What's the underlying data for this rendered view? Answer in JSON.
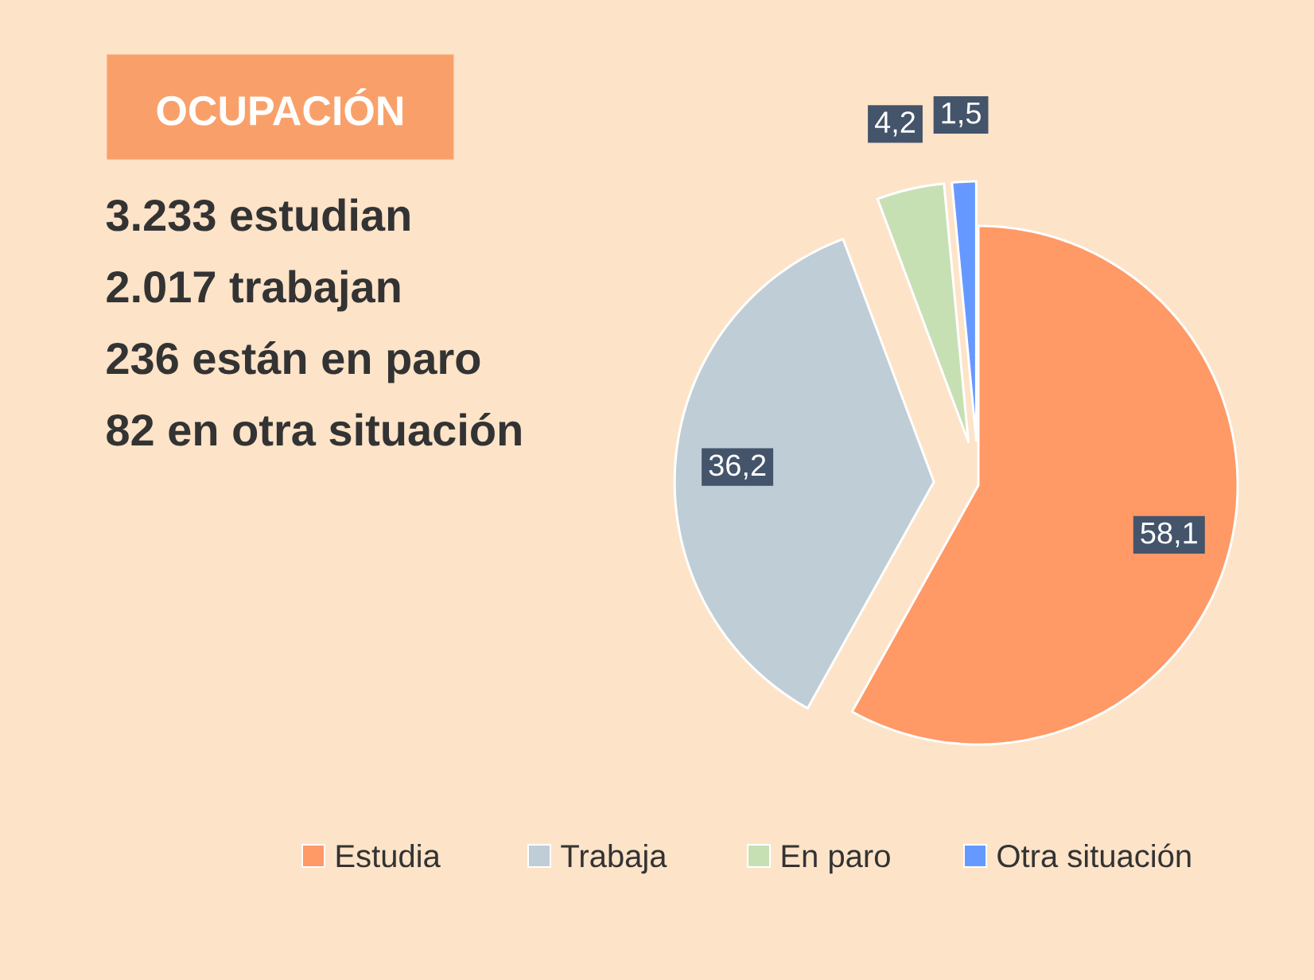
{
  "chart_data": {
    "type": "pie",
    "title": "OCUPACIÓN",
    "annotations": [
      "3.233 estudian",
      "2.017 trabajan",
      "236 están en paro",
      "82 en otra situación"
    ],
    "categories": [
      "Estudia",
      "Trabaja",
      "En paro",
      "Otra situación"
    ],
    "values": [
      58.1,
      36.2,
      4.2,
      1.5
    ],
    "value_labels": [
      "58,1",
      "36,2",
      "4,2",
      "1,5"
    ],
    "colors": [
      "#ff9966",
      "#bfcdd6",
      "#c6e0b4",
      "#6699ff"
    ],
    "legend": "bottom"
  }
}
